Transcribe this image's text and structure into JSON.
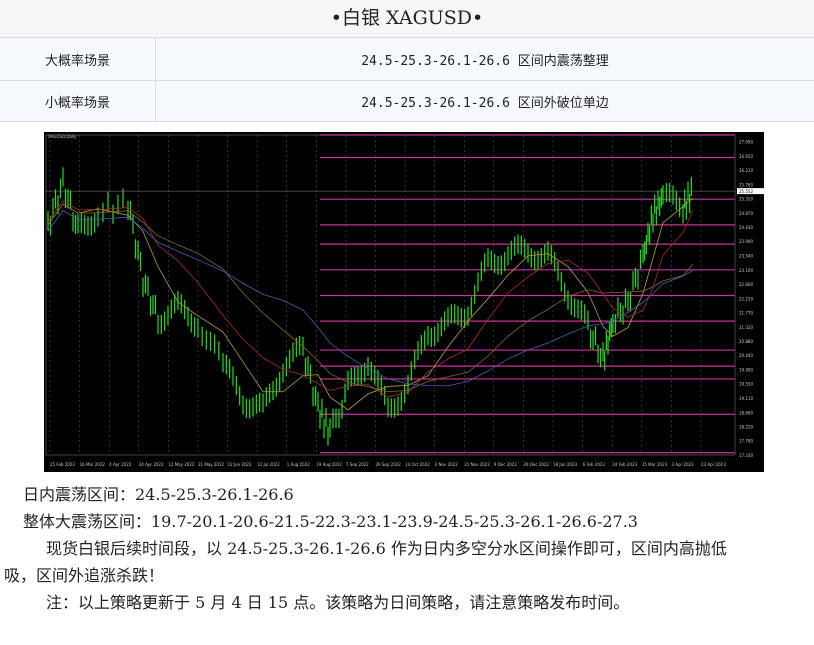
{
  "title": "•白银  XAGUSD•",
  "table": [
    {
      "label": "大概率场景",
      "value": "24.5-25.3-26.1-26.6 区间内震荡整理"
    },
    {
      "label": "小概率场景",
      "value": "24.5-25.3-26.1-26.6 区间外破位单边"
    }
  ],
  "chart": {
    "symbol": "XAGUSD,Daily",
    "x_ticks": [
      "25 Feb 2022",
      "16 Mar 2022",
      "4 Apr 2022",
      "24 Apr 2022",
      "12 May 2022",
      "31 May 2022",
      "22 Jun 2022",
      "12 Jul 2022",
      "1 Aug 2022",
      "19 Aug 2022",
      "7 Sep 2022",
      "26 Sep 2022",
      "14 Oct 2022",
      "2 Nov 2022",
      "21 Nov 2022",
      "9 Dec 2022",
      "29 Dec 2022",
      "18 Jan 2023",
      "6 Feb 2023",
      "24 Feb 2023",
      "15 Mar 2023",
      "3 Apr 2023",
      "23 Apr 2023"
    ],
    "y_ticks": [
      "27.090",
      "26.650",
      "26.210",
      "25.760",
      "25.320",
      "24.870",
      "24.430",
      "23.990",
      "23.540",
      "23.100",
      "22.660",
      "22.210",
      "21.770",
      "21.320",
      "20.880",
      "20.440",
      "19.990",
      "19.550",
      "19.110",
      "18.660",
      "18.220",
      "17.780",
      "17.330"
    ],
    "current_price": "25.552",
    "colors": {
      "candles": "#22dd22",
      "levels": "#cc3399",
      "background": "#000000"
    }
  },
  "lines": [
    "日内震荡区间：24.5-25.3-26.1-26.6",
    "整体大震荡区间：19.7-20.1-20.6-21.5-22.3-23.1-23.9-24.5-25.3-26.1-26.6-27.3",
    "现货白银后续时间段，以 24.5-25.3-26.1-26.6 作为日内多空分水区间操作即可，区间内高抛低",
    "吸，区间外追涨杀跌！",
    "注：以上策略更新于 5 月 4 日 15 点。该策略为日间策略，请注意策略发布时间。"
  ]
}
